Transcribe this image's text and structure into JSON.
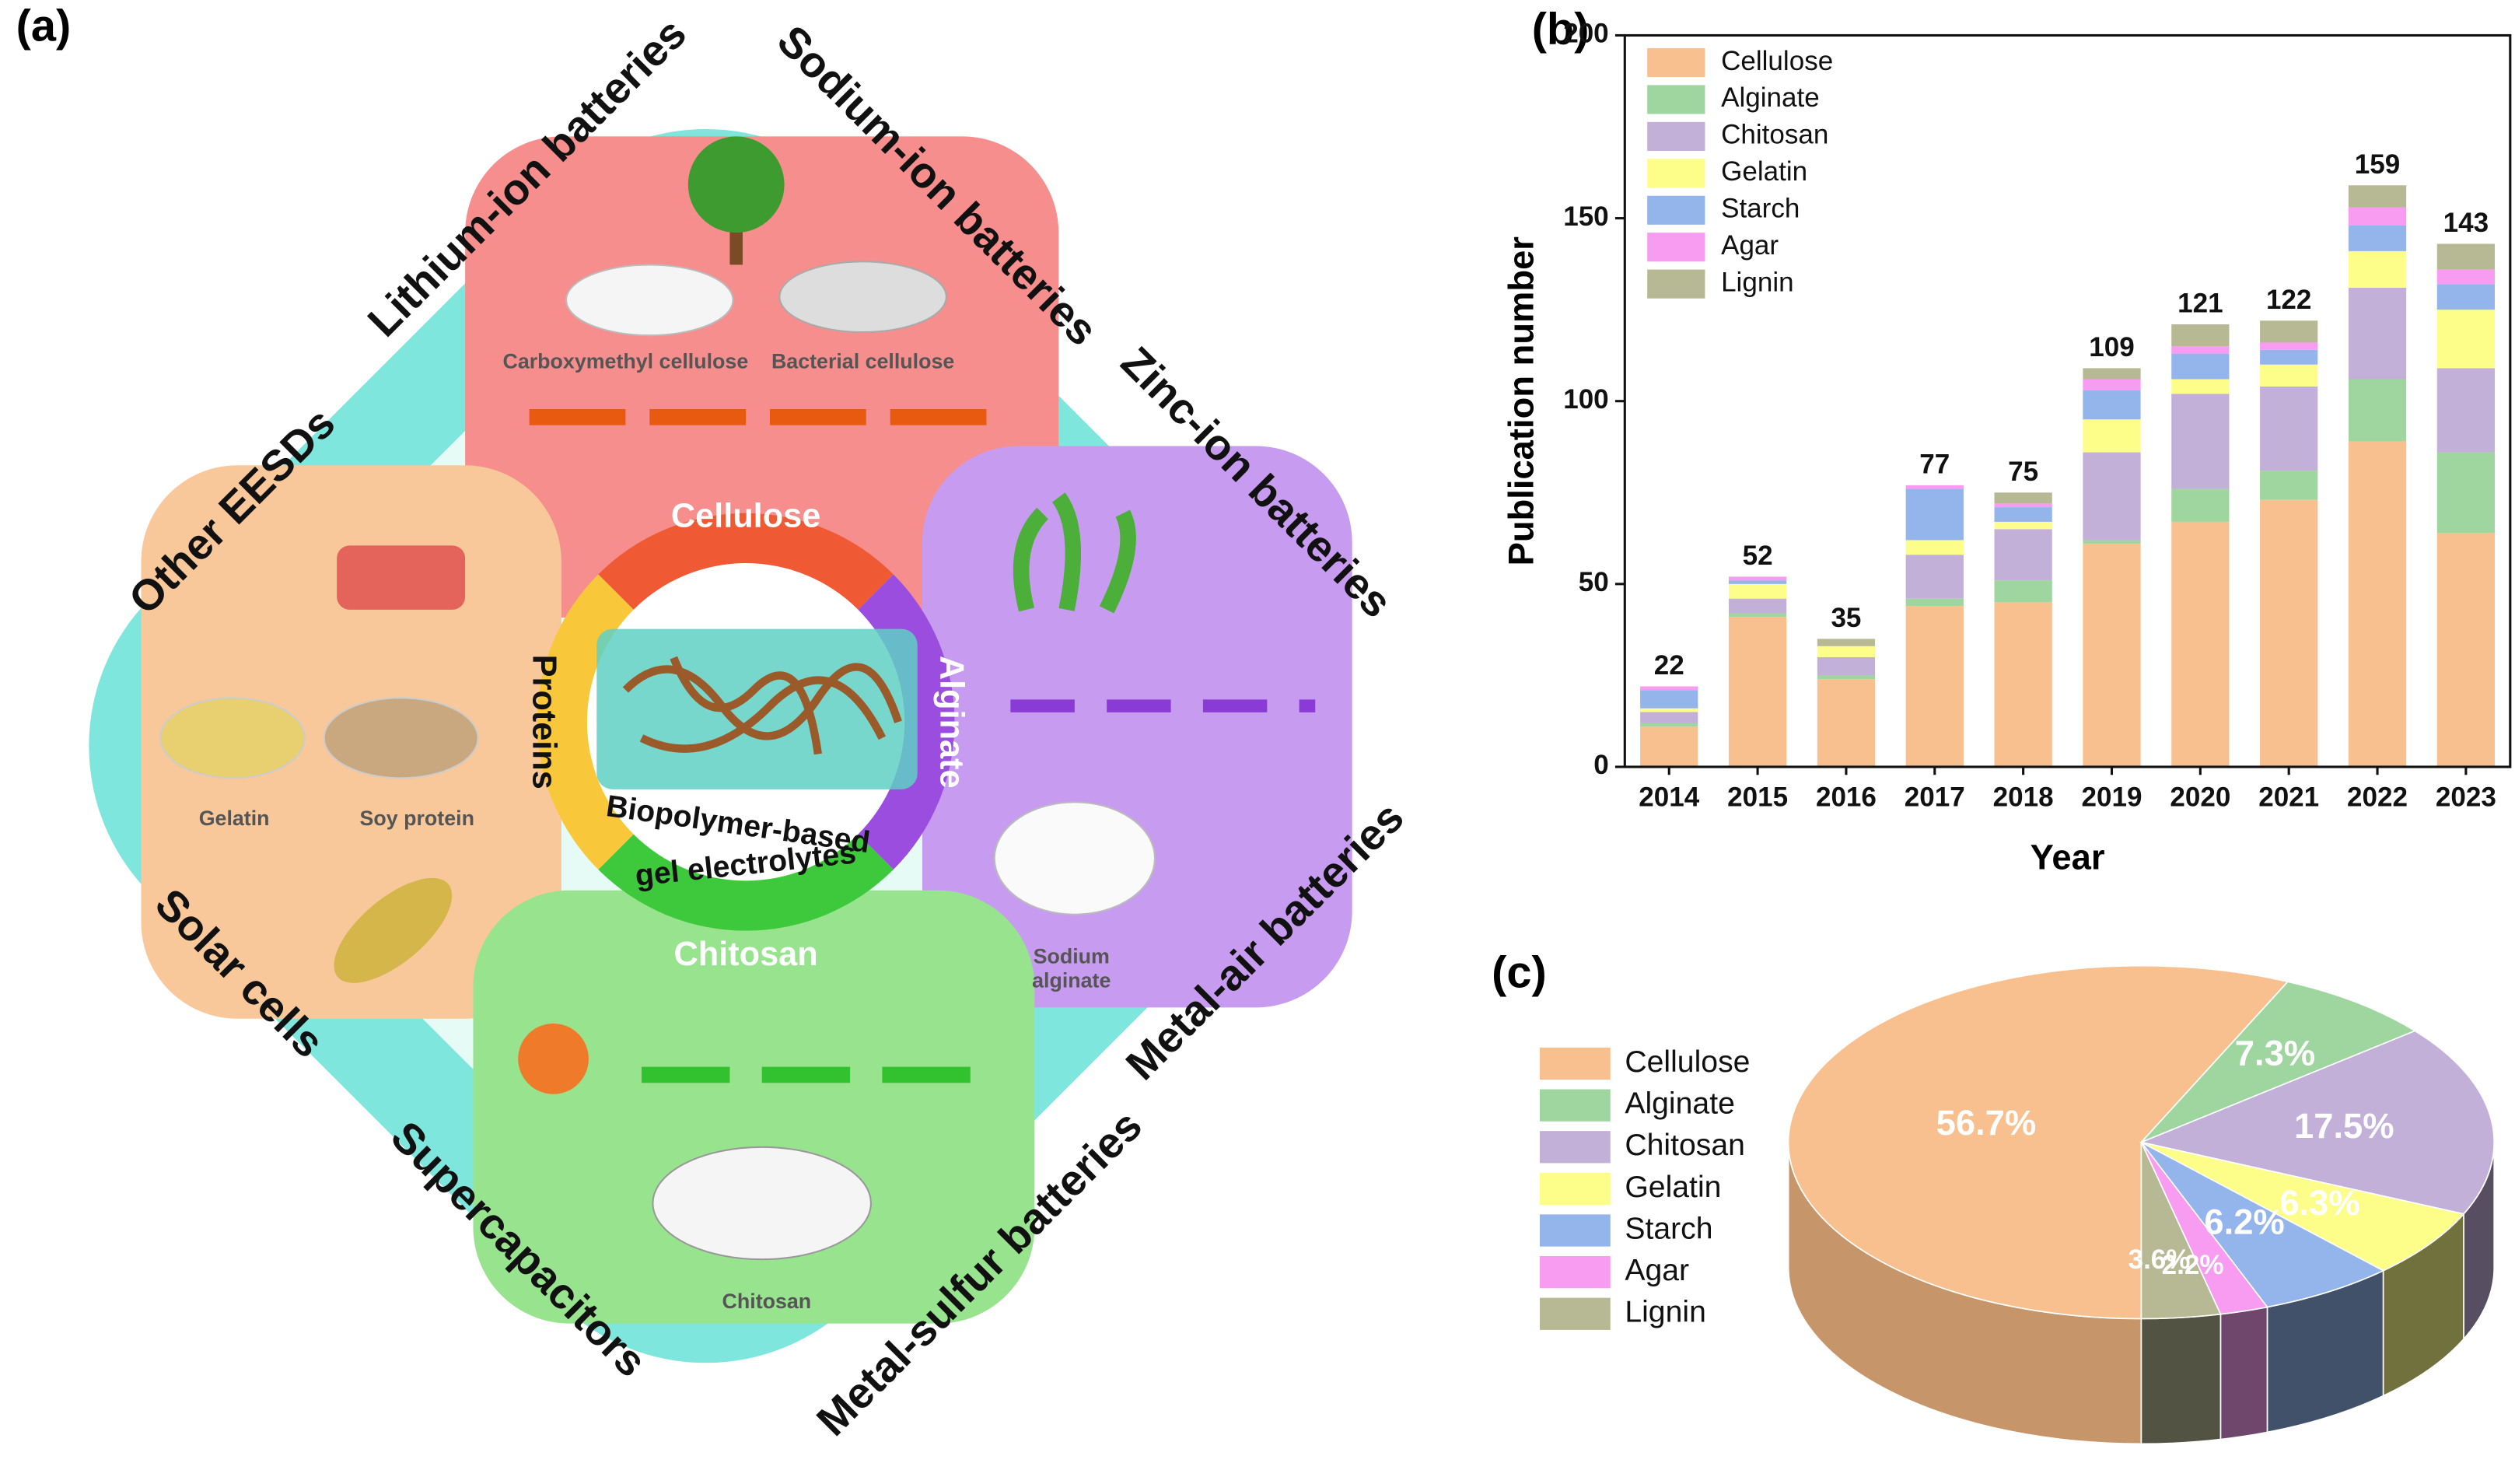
{
  "diagram": {
    "panel_label": "(a)",
    "applications": [
      "Lithium-ion batteries",
      "Sodium-ion batteries",
      "Zinc-ion batteries",
      "Metal-air batteries",
      "Metal-sulfur batteries",
      "Supercapacitors",
      "Solar cells",
      "Other EESDs"
    ],
    "biopolymers": [
      "Cellulose",
      "Alginate",
      "Chitosan",
      "Proteins"
    ],
    "sources": [
      "Carboxymethyl cellulose",
      "Bacterial cellulose",
      "Gelatin",
      "Soy protein",
      "Sodium",
      "alginate",
      "Chitosan"
    ],
    "center": [
      "Biopolymer-based",
      "gel electrolytes"
    ]
  },
  "chart_data": [
    {
      "type": "stacked_bar",
      "panel_label": "(b)",
      "xlabel": "Year",
      "ylabel": "Publication number",
      "categories": [
        "2014",
        "2015",
        "2016",
        "2017",
        "2018",
        "2019",
        "2020",
        "2021",
        "2022",
        "2023"
      ],
      "series": [
        {
          "name": "Cellulose",
          "color": "#f9c08f",
          "values": [
            11,
            41,
            24,
            44,
            45,
            61,
            67,
            73,
            89,
            64
          ]
        },
        {
          "name": "Alginate",
          "color": "#9fd59f",
          "values": [
            1,
            1,
            1,
            2,
            6,
            1,
            9,
            8,
            17,
            22
          ]
        },
        {
          "name": "Chitosan",
          "color": "#c2b0d8",
          "values": [
            3,
            4,
            5,
            12,
            14,
            24,
            26,
            23,
            25,
            23
          ]
        },
        {
          "name": "Gelatin",
          "color": "#fdfd8a",
          "values": [
            1,
            4,
            3,
            4,
            2,
            9,
            4,
            6,
            10,
            16
          ]
        },
        {
          "name": "Starch",
          "color": "#94b4ec",
          "values": [
            5,
            1,
            0,
            14,
            4,
            8,
            7,
            4,
            7,
            7
          ]
        },
        {
          "name": "Agar",
          "color": "#f79cf0",
          "values": [
            1,
            1,
            0,
            1,
            1,
            3,
            2,
            2,
            5,
            4
          ]
        },
        {
          "name": "Lignin",
          "color": "#b7b994",
          "values": [
            0,
            0,
            2,
            0,
            3,
            3,
            6,
            6,
            6,
            7
          ]
        }
      ],
      "totals": [
        22,
        52,
        35,
        77,
        75,
        109,
        121,
        122,
        159,
        143
      ],
      "ylim": [
        0,
        200
      ],
      "yticks": [
        0,
        50,
        100,
        150,
        200
      ],
      "legend": "upper left"
    },
    {
      "type": "pie",
      "panel_label": "(c)",
      "categories": [
        "Cellulose",
        "Alginate",
        "Chitosan",
        "Gelatin",
        "Starch",
        "Agar",
        "Lignin"
      ],
      "colors": [
        "#f9c08f",
        "#9fd59f",
        "#c2b0d8",
        "#fdfd8a",
        "#94b4ec",
        "#f79cf0",
        "#b7b994"
      ],
      "values": [
        56.7,
        7.3,
        17.5,
        6.3,
        6.2,
        2.2,
        3.6
      ],
      "value_labels": [
        "56.7%",
        "7.3%",
        "17.5%",
        "6.3%",
        "6.2%",
        "2.2%",
        "3.6%"
      ],
      "legend": "left"
    }
  ]
}
